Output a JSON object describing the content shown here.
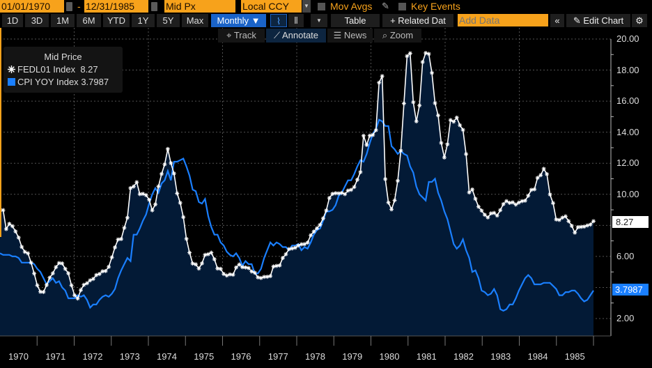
{
  "toolbar": {
    "start_date": "01/01/1970",
    "end_date": "12/31/1985",
    "date_sep": "-",
    "field": "Mid Px",
    "currency": "Local CCY",
    "mov_avgs": "Mov Avgs",
    "key_events": "Key Events",
    "ranges": [
      "1D",
      "3D",
      "1M",
      "6M",
      "YTD",
      "1Y",
      "5Y",
      "Max"
    ],
    "frequency": "Monthly ▼",
    "table": "Table",
    "related": "+ Related Dat",
    "add_data_placeholder": "Add Data",
    "collapse": "«",
    "edit_chart": "Edit Chart",
    "settings": "⚙"
  },
  "tabs": [
    "Track",
    "Annotate",
    "News",
    "Zoom"
  ],
  "legend": {
    "title": "Mid Price",
    "items": [
      {
        "label": "FEDL01 Index",
        "value": "8.27"
      },
      {
        "label": "CPI YOY Index",
        "value": "3.7987"
      }
    ]
  },
  "colors": {
    "fedl01": "#ffffff",
    "cpi": "#1a7fff",
    "fill": "#031a36",
    "accent": "#f7a21b",
    "active": "#1a63c8"
  },
  "chart_data": {
    "type": "line",
    "x_range": [
      "1970-01",
      "1985-12"
    ],
    "x_frequency": "monthly",
    "x_tick_labels": [
      "1970",
      "1971",
      "1972",
      "1973",
      "1974",
      "1975",
      "1976",
      "1977",
      "1978",
      "1979",
      "1980",
      "1981",
      "1982",
      "1983",
      "1984",
      "1985"
    ],
    "y_tick_labels": [
      "20.00",
      "18.00",
      "16.00",
      "14.00",
      "12.00",
      "10.00",
      "6.00",
      "2.00"
    ],
    "ylim": [
      1,
      20.5
    ],
    "grid": true,
    "legend_position": "top-left",
    "last_value_labels": [
      "8.27",
      "3.7987"
    ],
    "series": [
      {
        "name": "FEDL01 Index",
        "style": "line-area-markers",
        "values": [
          8.98,
          8.98,
          7.76,
          8.1,
          7.95,
          7.61,
          7.21,
          6.61,
          6.29,
          6.2,
          5.6,
          4.9,
          4.14,
          3.72,
          3.71,
          4.16,
          4.63,
          4.91,
          5.31,
          5.57,
          5.55,
          5.2,
          4.91,
          4.14,
          3.5,
          3.29,
          3.83,
          4.17,
          4.27,
          4.46,
          4.55,
          4.8,
          4.87,
          5.04,
          5.06,
          5.33,
          5.94,
          6.58,
          7.09,
          7.12,
          7.84,
          8.49,
          10.4,
          10.5,
          10.78,
          10.01,
          10.03,
          9.95,
          9.65,
          8.97,
          9.35,
          10.51,
          11.31,
          11.93,
          12.92,
          12.01,
          11.34,
          10.06,
          9.45,
          8.53,
          7.13,
          6.24,
          5.54,
          5.49,
          5.22,
          5.55,
          6.1,
          6.14,
          6.24,
          5.82,
          5.22,
          5.2,
          4.87,
          4.77,
          4.84,
          4.82,
          5.29,
          5.48,
          5.31,
          5.29,
          5.25,
          5.03,
          4.95,
          4.65,
          4.61,
          4.68,
          4.69,
          4.73,
          5.35,
          5.39,
          5.42,
          5.9,
          6.14,
          6.47,
          6.51,
          6.56,
          6.7,
          6.78,
          6.79,
          6.89,
          7.36,
          7.6,
          7.81,
          8.04,
          8.45,
          8.96,
          9.76,
          10.03,
          10.07,
          10.06,
          10.09,
          10.01,
          10.24,
          10.29,
          10.47,
          10.94,
          11.43,
          13.77,
          13.18,
          13.78,
          13.82,
          14.13,
          17.19,
          17.61,
          10.98,
          9.47,
          9.03,
          9.61,
          10.87,
          12.81,
          15.85,
          18.9,
          19.08,
          15.93,
          14.7,
          15.72,
          18.52,
          19.1,
          19.04,
          17.82,
          15.87,
          15.08,
          13.31,
          12.37,
          13.22,
          14.78,
          14.68,
          14.94,
          14.45,
          14.15,
          12.59,
          10.12,
          10.31,
          9.71,
          9.2,
          8.95,
          8.68,
          8.51,
          8.77,
          8.8,
          8.63,
          8.98,
          9.37,
          9.56,
          9.45,
          9.48,
          9.34,
          9.47,
          9.56,
          9.59,
          9.91,
          10.29,
          10.32,
          11.06,
          11.23,
          11.64,
          11.3,
          9.99,
          9.43,
          8.38,
          8.35,
          8.5,
          8.58,
          8.27,
          7.97,
          7.53,
          7.88,
          7.9,
          7.92,
          7.99,
          8.05,
          8.27
        ]
      },
      {
        "name": "CPI YOY Index",
        "style": "line",
        "values": [
          6.2,
          6.1,
          6.1,
          6.1,
          6.0,
          6.0,
          5.9,
          5.6,
          5.6,
          5.6,
          5.6,
          5.5,
          5.2,
          5.0,
          4.6,
          4.2,
          4.4,
          4.6,
          4.3,
          4.4,
          4.0,
          3.8,
          3.3,
          3.3,
          3.3,
          3.5,
          3.4,
          3.5,
          3.2,
          2.7,
          2.9,
          2.9,
          3.2,
          3.4,
          3.5,
          3.4,
          3.6,
          3.9,
          4.6,
          5.1,
          5.5,
          5.9,
          5.7,
          7.4,
          7.4,
          7.8,
          8.3,
          8.7,
          9.4,
          10.0,
          10.4,
          10.1,
          10.7,
          10.9,
          11.5,
          10.9,
          12.1,
          12.1,
          12.2,
          12.3,
          11.8,
          11.2,
          10.3,
          10.2,
          9.5,
          9.4,
          9.7,
          8.6,
          7.9,
          7.4,
          7.4,
          6.9,
          6.7,
          6.3,
          6.1,
          6.0,
          6.2,
          5.9,
          5.4,
          5.7,
          5.5,
          5.5,
          4.9,
          4.9,
          5.2,
          5.9,
          6.4,
          6.9,
          6.7,
          6.9,
          6.8,
          6.6,
          6.6,
          6.4,
          6.7,
          6.7,
          6.8,
          6.4,
          6.6,
          6.5,
          6.9,
          7.4,
          7.7,
          7.8,
          8.3,
          8.9,
          8.9,
          9.0,
          9.3,
          9.9,
          10.1,
          10.5,
          10.9,
          10.9,
          11.3,
          11.8,
          12.2,
          12.1,
          12.6,
          13.3,
          13.9,
          14.2,
          14.8,
          14.7,
          14.4,
          14.4,
          13.1,
          12.9,
          12.6,
          12.8,
          12.6,
          12.5,
          11.8,
          11.4,
          10.5,
          10.0,
          9.8,
          9.6,
          10.8,
          10.8,
          11.0,
          10.1,
          9.6,
          8.9,
          8.4,
          7.6,
          6.8,
          6.5,
          6.7,
          7.1,
          6.4,
          5.9,
          5.0,
          5.1,
          4.6,
          3.8,
          3.7,
          3.5,
          3.6,
          3.9,
          3.5,
          2.6,
          2.5,
          2.6,
          2.9,
          2.9,
          3.3,
          3.8,
          4.2,
          4.6,
          4.8,
          4.6,
          4.2,
          4.2,
          4.2,
          4.3,
          4.3,
          4.3,
          4.1,
          3.9,
          3.5,
          3.5,
          3.7,
          3.7,
          3.8,
          3.8,
          3.6,
          3.3,
          3.1,
          3.2,
          3.5,
          3.7987
        ]
      }
    ]
  }
}
